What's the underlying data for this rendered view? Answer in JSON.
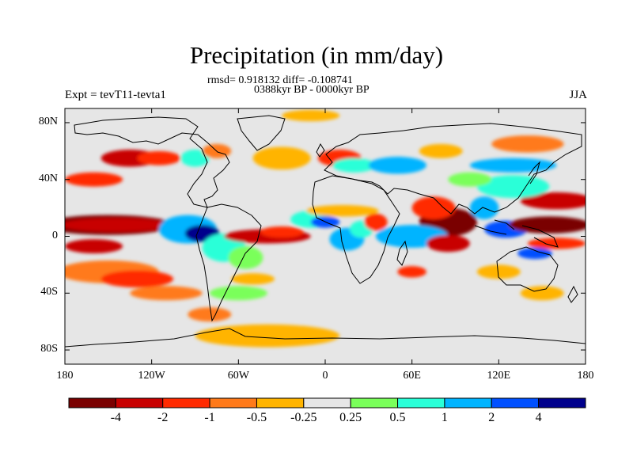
{
  "title": "Precipitation (in mm/day)",
  "stats": "rmsd= 0.918132 diff= -0.108741",
  "period": "0388kyr BP - 0000kyr BP",
  "experiment": "Expt = tevT11-tevta1",
  "season": "JJA",
  "map": {
    "projection": "cylindrical-equidistant",
    "lon_range": [
      -180,
      180
    ],
    "lat_range": [
      -90,
      90
    ],
    "lat_ticks": [
      {
        "value": 80,
        "label": "80N"
      },
      {
        "value": 40,
        "label": "40N"
      },
      {
        "value": 0,
        "label": "0"
      },
      {
        "value": -40,
        "label": "40S"
      },
      {
        "value": -80,
        "label": "80S"
      }
    ],
    "lon_ticks": [
      {
        "value": -180,
        "label": "180"
      },
      {
        "value": -120,
        "label": "120W"
      },
      {
        "value": -60,
        "label": "60W"
      },
      {
        "value": 0,
        "label": "0"
      },
      {
        "value": 60,
        "label": "60E"
      },
      {
        "value": 120,
        "label": "120E"
      },
      {
        "value": 180,
        "label": "180"
      }
    ]
  },
  "colorbar": {
    "colors": [
      "#7a0000",
      "#c80000",
      "#ff2a00",
      "#ff7a1a",
      "#ffb400",
      "#e6e6e6",
      "#7aff5a",
      "#2affd8",
      "#00b4ff",
      "#0050ff",
      "#00008c"
    ],
    "labels": [
      "-4",
      "-2",
      "-1",
      "-0.5",
      "-0.25",
      "0.25",
      "0.5",
      "1",
      "2",
      "4"
    ]
  },
  "anomalies": [
    {
      "lon": -150,
      "lat": 8,
      "rx": 45,
      "ry": 7,
      "level": 0
    },
    {
      "lon": -145,
      "lat": 8,
      "rx": 38,
      "ry": 5,
      "level": 1
    },
    {
      "lon": -160,
      "lat": -7,
      "rx": 20,
      "ry": 5,
      "level": 1
    },
    {
      "lon": -150,
      "lat": -25,
      "rx": 35,
      "ry": 8,
      "level": 3
    },
    {
      "lon": -130,
      "lat": -30,
      "rx": 25,
      "ry": 6,
      "level": 2
    },
    {
      "lon": -110,
      "lat": -40,
      "rx": 25,
      "ry": 5,
      "level": 3
    },
    {
      "lon": -95,
      "lat": 5,
      "rx": 20,
      "ry": 10,
      "level": 8
    },
    {
      "lon": -85,
      "lat": 2,
      "rx": 12,
      "ry": 6,
      "level": 10
    },
    {
      "lon": -70,
      "lat": -8,
      "rx": 15,
      "ry": 10,
      "level": 7
    },
    {
      "lon": -55,
      "lat": -15,
      "rx": 12,
      "ry": 8,
      "level": 6
    },
    {
      "lon": -40,
      "lat": 0,
      "rx": 30,
      "ry": 5,
      "level": 1
    },
    {
      "lon": -30,
      "lat": 3,
      "rx": 15,
      "ry": 4,
      "level": 2
    },
    {
      "lon": -10,
      "lat": 12,
      "rx": 14,
      "ry": 6,
      "level": 7
    },
    {
      "lon": 0,
      "lat": 10,
      "rx": 10,
      "ry": 4,
      "level": 9
    },
    {
      "lon": 15,
      "lat": -2,
      "rx": 12,
      "ry": 8,
      "level": 8
    },
    {
      "lon": 25,
      "lat": 5,
      "rx": 8,
      "ry": 6,
      "level": 7
    },
    {
      "lon": 12,
      "lat": 18,
      "rx": 25,
      "ry": 4,
      "level": 4
    },
    {
      "lon": 35,
      "lat": 10,
      "rx": 8,
      "ry": 6,
      "level": 2
    },
    {
      "lon": 85,
      "lat": 10,
      "rx": 20,
      "ry": 10,
      "level": 0
    },
    {
      "lon": 75,
      "lat": 20,
      "rx": 15,
      "ry": 8,
      "level": 2
    },
    {
      "lon": 60,
      "lat": 0,
      "rx": 25,
      "ry": 8,
      "level": 8
    },
    {
      "lon": 85,
      "lat": -5,
      "rx": 15,
      "ry": 6,
      "level": 1
    },
    {
      "lon": 110,
      "lat": 20,
      "rx": 10,
      "ry": 8,
      "level": 8
    },
    {
      "lon": 125,
      "lat": 5,
      "rx": 15,
      "ry": 6,
      "level": 9
    },
    {
      "lon": 160,
      "lat": 25,
      "rx": 25,
      "ry": 6,
      "level": 1
    },
    {
      "lon": 155,
      "lat": 8,
      "rx": 28,
      "ry": 6,
      "level": 0
    },
    {
      "lon": 160,
      "lat": -5,
      "rx": 20,
      "ry": 4,
      "level": 2
    },
    {
      "lon": 145,
      "lat": -12,
      "rx": 12,
      "ry": 4,
      "level": 9
    },
    {
      "lon": 130,
      "lat": 35,
      "rx": 25,
      "ry": 8,
      "level": 7
    },
    {
      "lon": 130,
      "lat": 50,
      "rx": 30,
      "ry": 5,
      "level": 8
    },
    {
      "lon": -135,
      "lat": 55,
      "rx": 20,
      "ry": 6,
      "level": 1
    },
    {
      "lon": -115,
      "lat": 55,
      "rx": 15,
      "ry": 5,
      "level": 2
    },
    {
      "lon": -90,
      "lat": 55,
      "rx": 10,
      "ry": 6,
      "level": 7
    },
    {
      "lon": -75,
      "lat": 60,
      "rx": 10,
      "ry": 5,
      "level": 3
    },
    {
      "lon": -160,
      "lat": 40,
      "rx": 20,
      "ry": 5,
      "level": 2
    },
    {
      "lon": -30,
      "lat": 55,
      "rx": 20,
      "ry": 8,
      "level": 4
    },
    {
      "lon": 10,
      "lat": 55,
      "rx": 15,
      "ry": 6,
      "level": 2
    },
    {
      "lon": 20,
      "lat": 50,
      "rx": 15,
      "ry": 5,
      "level": 7
    },
    {
      "lon": 50,
      "lat": 50,
      "rx": 20,
      "ry": 6,
      "level": 8
    },
    {
      "lon": 80,
      "lat": 60,
      "rx": 15,
      "ry": 5,
      "level": 4
    },
    {
      "lon": 140,
      "lat": 65,
      "rx": 25,
      "ry": 6,
      "level": 3
    },
    {
      "lon": -10,
      "lat": 85,
      "rx": 20,
      "ry": 4,
      "level": 4
    },
    {
      "lon": 100,
      "lat": 40,
      "rx": 15,
      "ry": 5,
      "level": 6
    },
    {
      "lon": -60,
      "lat": -40,
      "rx": 20,
      "ry": 5,
      "level": 6
    },
    {
      "lon": -50,
      "lat": -30,
      "rx": 15,
      "ry": 4,
      "level": 4
    },
    {
      "lon": -40,
      "lat": -70,
      "rx": 50,
      "ry": 8,
      "level": 4
    },
    {
      "lon": 60,
      "lat": -25,
      "rx": 10,
      "ry": 4,
      "level": 2
    },
    {
      "lon": 120,
      "lat": -25,
      "rx": 15,
      "ry": 5,
      "level": 4
    },
    {
      "lon": 150,
      "lat": -40,
      "rx": 15,
      "ry": 5,
      "level": 4
    },
    {
      "lon": -80,
      "lat": -55,
      "rx": 15,
      "ry": 5,
      "level": 3
    }
  ]
}
